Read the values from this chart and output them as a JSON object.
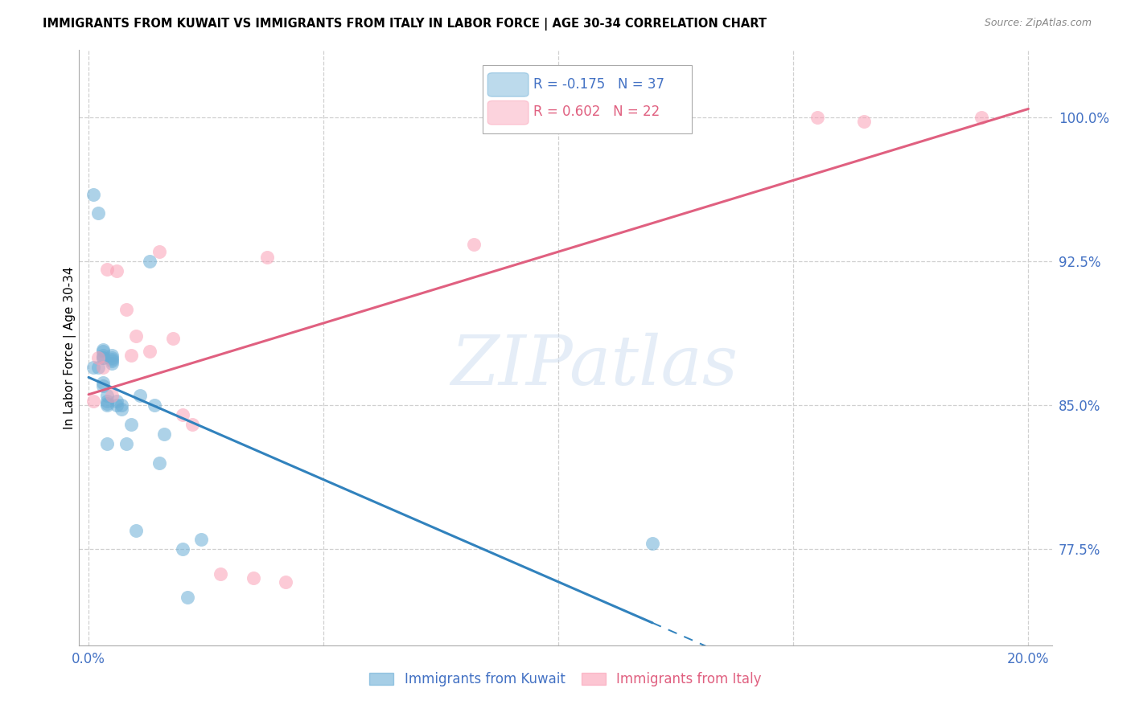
{
  "title": "IMMIGRANTS FROM KUWAIT VS IMMIGRANTS FROM ITALY IN LABOR FORCE | AGE 30-34 CORRELATION CHART",
  "source": "Source: ZipAtlas.com",
  "ylabel": "In Labor Force | Age 30-34",
  "xlim": [
    -0.002,
    0.205
  ],
  "ylim": [
    0.725,
    1.035
  ],
  "yticks": [
    0.775,
    0.85,
    0.925,
    1.0
  ],
  "ytick_labels": [
    "77.5%",
    "85.0%",
    "92.5%",
    "100.0%"
  ],
  "xticks": [
    0.0,
    0.05,
    0.1,
    0.15,
    0.2
  ],
  "xtick_labels": [
    "0.0%",
    "",
    "",
    "",
    "20.0%"
  ],
  "kuwait_color": "#6baed6",
  "italy_color": "#fa9fb5",
  "regression_kuwait_color": "#3182bd",
  "regression_italy_color": "#e06080",
  "kuwait_R": -0.175,
  "kuwait_N": 37,
  "italy_R": 0.602,
  "italy_N": 22,
  "kuwait_x": [
    0.001,
    0.001,
    0.002,
    0.002,
    0.003,
    0.003,
    0.003,
    0.003,
    0.003,
    0.003,
    0.003,
    0.004,
    0.004,
    0.004,
    0.004,
    0.004,
    0.005,
    0.005,
    0.005,
    0.005,
    0.005,
    0.006,
    0.006,
    0.007,
    0.007,
    0.008,
    0.009,
    0.01,
    0.011,
    0.013,
    0.014,
    0.015,
    0.016,
    0.02,
    0.021,
    0.024,
    0.12
  ],
  "kuwait_y": [
    0.96,
    0.87,
    0.95,
    0.87,
    0.875,
    0.875,
    0.876,
    0.878,
    0.879,
    0.862,
    0.86,
    0.855,
    0.852,
    0.851,
    0.85,
    0.83,
    0.876,
    0.875,
    0.874,
    0.873,
    0.872,
    0.852,
    0.85,
    0.85,
    0.848,
    0.83,
    0.84,
    0.785,
    0.855,
    0.925,
    0.85,
    0.82,
    0.835,
    0.775,
    0.75,
    0.78,
    0.778
  ],
  "italy_x": [
    0.001,
    0.002,
    0.003,
    0.004,
    0.005,
    0.006,
    0.008,
    0.009,
    0.01,
    0.013,
    0.015,
    0.018,
    0.02,
    0.022,
    0.028,
    0.035,
    0.038,
    0.042,
    0.082,
    0.155,
    0.165,
    0.19
  ],
  "italy_y": [
    0.852,
    0.875,
    0.87,
    0.921,
    0.855,
    0.92,
    0.9,
    0.876,
    0.886,
    0.878,
    0.93,
    0.885,
    0.845,
    0.84,
    0.762,
    0.76,
    0.927,
    0.758,
    0.934,
    1.0,
    0.998,
    1.0
  ],
  "legend_kuwait_label": "Immigrants from Kuwait",
  "legend_italy_label": "Immigrants from Italy",
  "watermark_text": "ZIPatlas",
  "background_color": "#ffffff"
}
